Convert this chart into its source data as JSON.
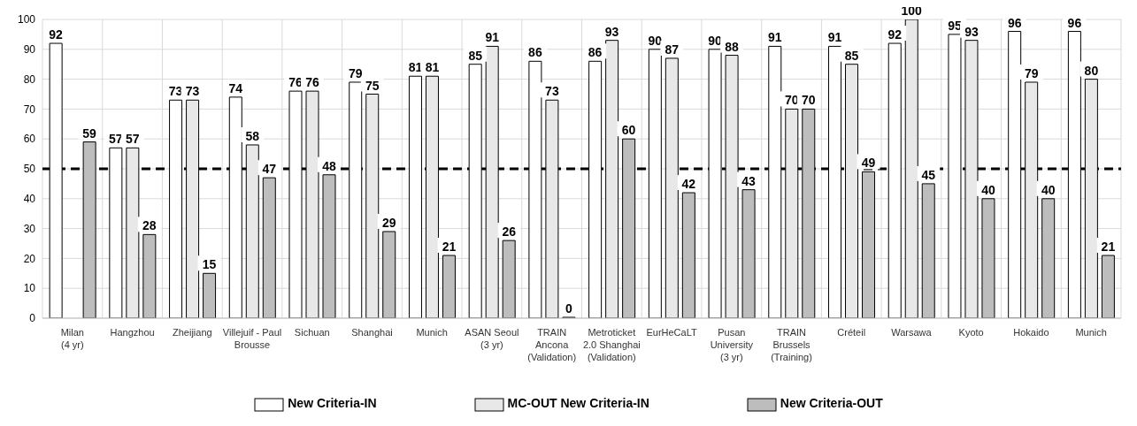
{
  "chart_data": {
    "type": "bar",
    "categories": [
      "Milan\n(4 yr)",
      "Hangzhou",
      "Zheijiang",
      "Villejuif - Paul\nBrousse",
      "Sichuan",
      "Shanghai",
      "Munich",
      "ASAN Seoul\n(3 yr)",
      "TRAIN\nAncona\n(Validation)",
      "Metroticket\n2.0 Shanghai\n(Validation)",
      "EurHeCaLT",
      "Pusan\nUniversity\n(3 yr)",
      "TRAIN\nBrussels\n(Training)",
      "Créteil",
      "Warsawa",
      "Kyoto",
      "Hokaido",
      "Munich"
    ],
    "series": [
      {
        "name": "New Criteria-IN",
        "color": "#ffffff",
        "values": [
          92,
          57,
          73,
          74,
          76,
          79,
          81,
          85,
          86,
          86,
          90,
          90,
          91,
          91,
          92,
          95,
          96,
          96
        ]
      },
      {
        "name": "MC-OUT New Criteria-IN",
        "color": "#e8e8e8",
        "values": [
          null,
          57,
          73,
          58,
          76,
          75,
          81,
          91,
          73,
          93,
          87,
          88,
          70,
          85,
          100,
          93,
          79,
          80
        ]
      },
      {
        "name": "New Criteria-OUT",
        "color": "#bdbdbd",
        "values": [
          59,
          28,
          15,
          47,
          48,
          29,
          21,
          26,
          0,
          60,
          42,
          43,
          70,
          49,
          45,
          40,
          40,
          21
        ]
      }
    ],
    "ylim": [
      0,
      100
    ],
    "yticks": [
      0,
      10,
      20,
      30,
      40,
      50,
      60,
      70,
      80,
      90,
      100
    ],
    "grid": true,
    "legend": "bottom",
    "data_labels": true,
    "ref_lines": [
      {
        "axis": "y",
        "value": 50,
        "color": "#000000",
        "line_style": "dashed"
      }
    ]
  }
}
